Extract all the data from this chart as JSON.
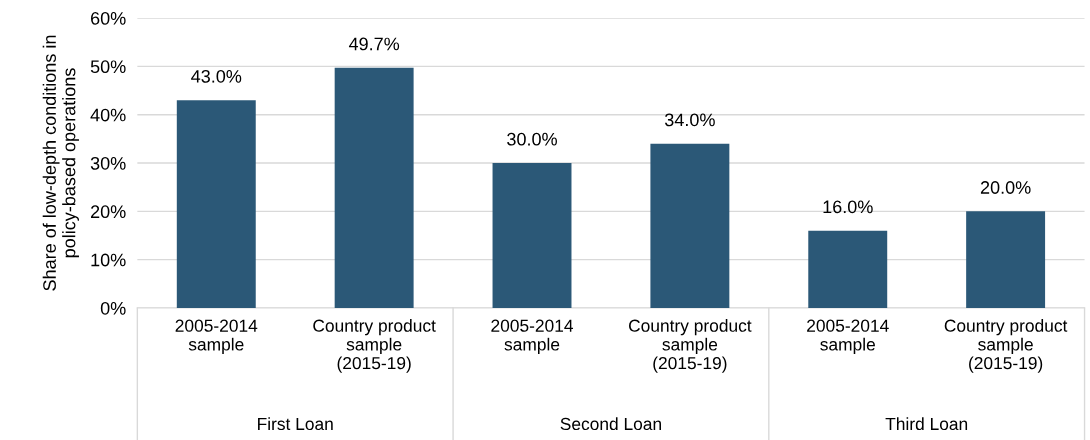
{
  "chart_data": {
    "type": "bar",
    "ylabel": "Share of low-depth conditions in\npolicy-based operations",
    "categories": [
      "2005-2014\nsample",
      "Country product\nsample\n(2015-19)",
      "2005-2014\nsample",
      "Country product\nsample\n(2015-19)",
      "2005-2014\nsample",
      "Country product\nsample\n(2015-19)"
    ],
    "values": [
      43.0,
      49.7,
      30.0,
      34.0,
      16.0,
      20.0
    ],
    "value_labels": [
      "43.0%",
      "49.7%",
      "30.0%",
      "34.0%",
      "16.0%",
      "20.0%"
    ],
    "color": "#2b5877",
    "ylim": [
      0,
      60
    ],
    "yticks": [
      {
        "value": 0,
        "label": "0%"
      },
      {
        "value": 10,
        "label": "10%"
      },
      {
        "value": 20,
        "label": "20%"
      },
      {
        "value": 30,
        "label": "30%"
      },
      {
        "value": 40,
        "label": "40%"
      },
      {
        "value": 50,
        "label": "50%"
      },
      {
        "value": 60,
        "label": "60%"
      }
    ],
    "grid": "y",
    "legend": false,
    "annotations": [
      "First Loan",
      "Second Loan",
      "Third Loan"
    ]
  }
}
